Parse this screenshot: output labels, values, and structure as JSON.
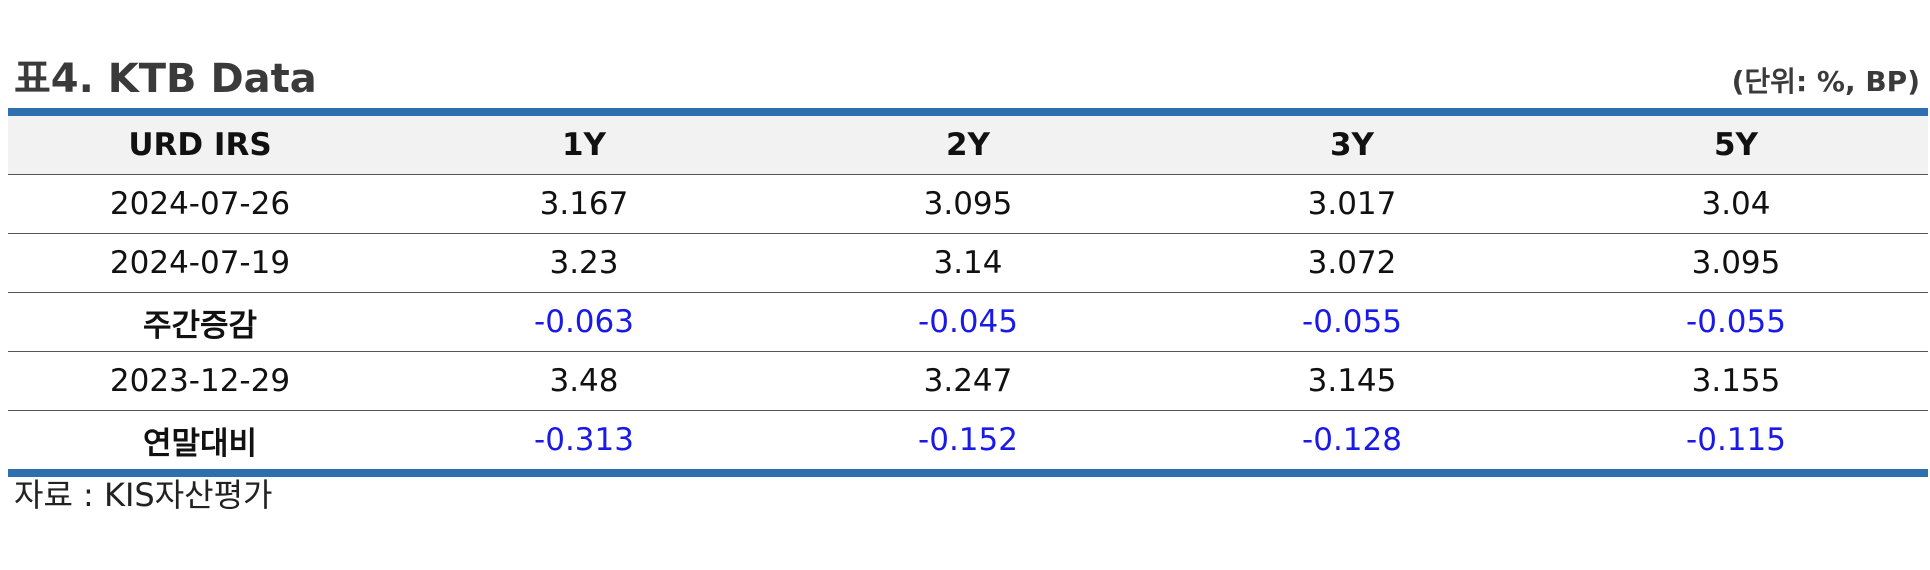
{
  "header": {
    "title": "표4. KTB Data",
    "unit": "(단위: %, BP)"
  },
  "table": {
    "columns": [
      "URD IRS",
      "1Y",
      "2Y",
      "3Y",
      "5Y"
    ],
    "rows": [
      {
        "label": "2024-07-26",
        "values": [
          "3.167",
          "3.095",
          "3.017",
          "3.04"
        ]
      },
      {
        "label": "2024-07-19",
        "values": [
          "3.23",
          "3.14",
          "3.072",
          "3.095"
        ]
      },
      {
        "label": "주간증감",
        "values": [
          "-0.063",
          "-0.045",
          "-0.055",
          "-0.055"
        ]
      },
      {
        "label": "2023-12-29",
        "values": [
          "3.48",
          "3.247",
          "3.145",
          "3.155"
        ]
      },
      {
        "label": "연말대비",
        "values": [
          "-0.313",
          "-0.152",
          "-0.128",
          "-0.115"
        ]
      }
    ]
  },
  "footer": {
    "source": "자료 : KIS자산평가"
  },
  "colors": {
    "border_accent": "#2e6fae",
    "header_bg": "#f2f2f2",
    "negative_value": "#1a1ae6"
  }
}
